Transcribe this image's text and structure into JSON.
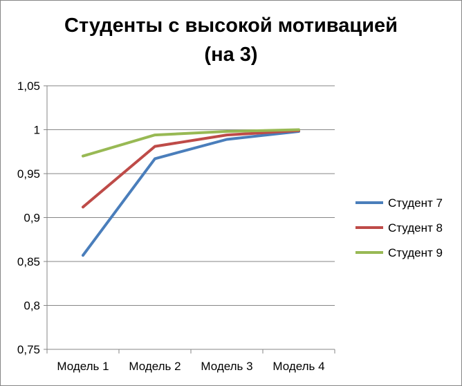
{
  "chart_data": {
    "type": "line",
    "title_line1": "Студенты с высокой мотивацией",
    "title_line2": "(на 3)",
    "categories": [
      "Модель 1",
      "Модель 2",
      "Модель 3",
      "Модель 4"
    ],
    "ylim": [
      0.75,
      1.05
    ],
    "y_ticks": [
      0.75,
      0.8,
      0.85,
      0.9,
      0.95,
      1,
      1.05
    ],
    "y_tick_labels": [
      "0,75",
      "0,8",
      "0,85",
      "0,9",
      "0,95",
      "1",
      "1,05"
    ],
    "grid": true,
    "legend_position": "right",
    "series": [
      {
        "name": "Студент 7",
        "color": "#4a7ebb",
        "values": [
          0.857,
          0.967,
          0.989,
          0.998
        ]
      },
      {
        "name": "Студент 8",
        "color": "#be4b48",
        "values": [
          0.912,
          0.981,
          0.994,
          0.999
        ]
      },
      {
        "name": "Студент 9",
        "color": "#98b954",
        "values": [
          0.97,
          0.994,
          0.998,
          1.0
        ]
      }
    ]
  }
}
